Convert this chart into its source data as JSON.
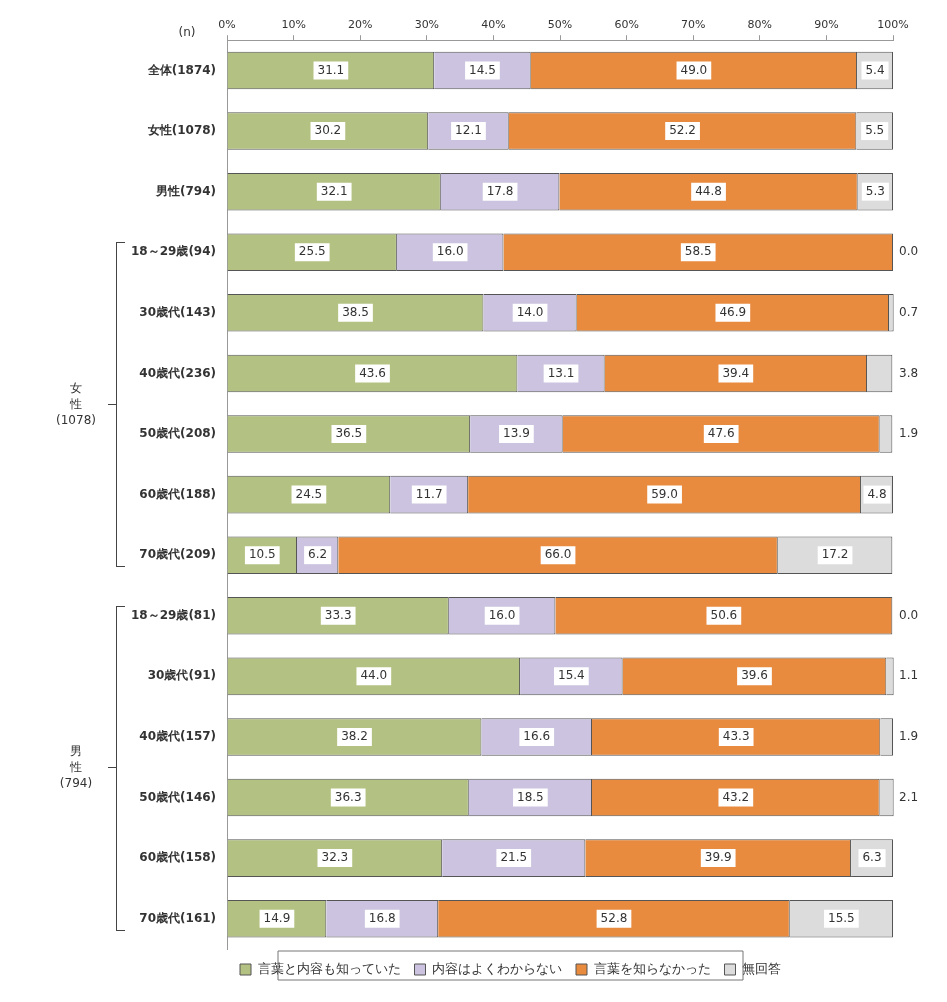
{
  "chart_data": {
    "type": "bar",
    "orientation": "horizontal",
    "stacked": true,
    "categories": [
      "全体(1874)",
      "女性(1078)",
      "男性(794)",
      "18～29歳(94)",
      "30歳代(143)",
      "40歳代(236)",
      "50歳代(208)",
      "60歳代(188)",
      "70歳代(209)",
      "18～29歳(81)",
      "30歳代(91)",
      "40歳代(157)",
      "50歳代(146)",
      "60歳代(158)",
      "70歳代(161)"
    ],
    "series": [
      {
        "name": "言葉と内容も知っていた",
        "color": "#b3c283",
        "values": [
          31.1,
          30.2,
          32.1,
          25.5,
          38.5,
          43.6,
          36.5,
          24.5,
          10.5,
          33.3,
          44.0,
          38.2,
          36.3,
          32.3,
          14.9
        ],
        "value_labels": [
          "31.1",
          "30.2",
          "32.1",
          "25.5",
          "38.5",
          "43.6",
          "36.5",
          "24.5",
          "10.5",
          "33.3",
          "44.0",
          "38.2",
          "36.3",
          "32.3",
          "14.9"
        ]
      },
      {
        "name": "内容はよくわからない",
        "color": "#cbc3df",
        "values": [
          14.5,
          12.1,
          17.8,
          16.0,
          14.0,
          13.1,
          13.9,
          11.7,
          6.2,
          16.0,
          15.4,
          16.6,
          18.5,
          21.5,
          16.8
        ],
        "value_labels": [
          "14.5",
          "12.1",
          "17.8",
          "16.0",
          "14.0",
          "13.1",
          "13.9",
          "11.7",
          "6.2",
          "16.0",
          "15.4",
          "16.6",
          "18.5",
          "21.5",
          "16.8"
        ]
      },
      {
        "name": "言葉を知らなかった",
        "color": "#e88b3f",
        "values": [
          49.0,
          52.2,
          44.8,
          58.5,
          46.9,
          39.4,
          47.6,
          59.0,
          66.0,
          50.6,
          39.6,
          43.3,
          43.2,
          39.9,
          52.8
        ],
        "value_labels": [
          "49.0",
          "52.2",
          "44.8",
          "58.5",
          "46.9",
          "39.4",
          "47.6",
          "59.0",
          "66.0",
          "50.6",
          "39.6",
          "43.3",
          "43.2",
          "39.9",
          "52.8"
        ]
      },
      {
        "name": "無回答",
        "color": "#dcdcdc",
        "values": [
          5.4,
          5.5,
          5.3,
          0.0,
          0.7,
          3.8,
          1.9,
          4.8,
          17.2,
          0.0,
          1.1,
          1.9,
          2.1,
          6.3,
          15.5
        ],
        "value_labels": [
          "5.4",
          "5.5",
          "5.3",
          "0.0",
          "0.7",
          "3.8",
          "1.9",
          "4.8",
          "17.2",
          "0.0",
          "1.1",
          "1.9",
          "2.1",
          "6.3",
          "15.5"
        ]
      }
    ],
    "xlim": [
      0,
      100
    ],
    "xticks": [
      {
        "value": 0,
        "label": "0%"
      },
      {
        "value": 10,
        "label": "10%"
      },
      {
        "value": 20,
        "label": "20%"
      },
      {
        "value": 30,
        "label": "30%"
      },
      {
        "value": 40,
        "label": "40%"
      },
      {
        "value": 50,
        "label": "50%"
      },
      {
        "value": 60,
        "label": "60%"
      },
      {
        "value": 70,
        "label": "70%"
      },
      {
        "value": 80,
        "label": "80%"
      },
      {
        "value": 90,
        "label": "90%"
      },
      {
        "value": 100,
        "label": "100%"
      }
    ],
    "legend": "bottom",
    "annotations": [
      "(n)",
      "女性(1078)",
      "男性(794)"
    ]
  }
}
